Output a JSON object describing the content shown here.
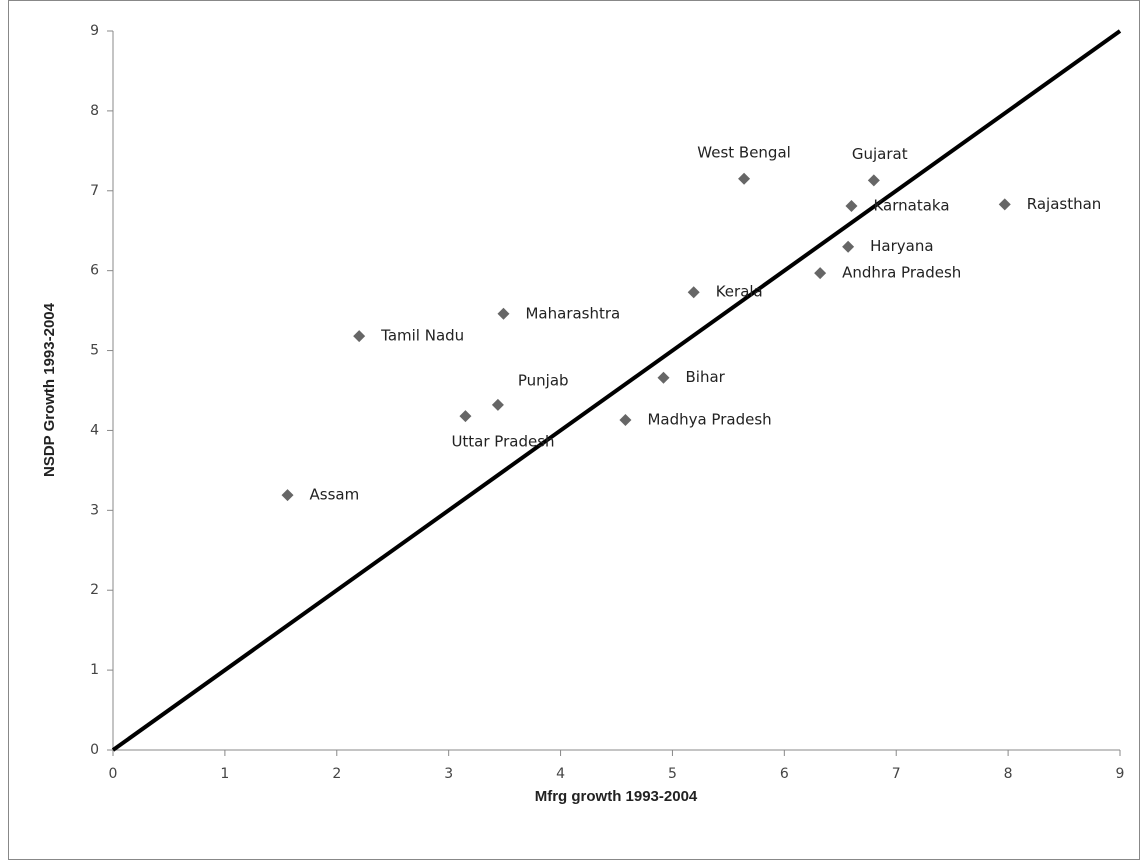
{
  "chart_data": {
    "type": "scatter",
    "x_label": "Mfrg growth 1993-2004",
    "y_label": "NSDP Growth 1993-2004",
    "color": "#666666",
    "points": [
      {
        "name": "Assam",
        "x": 1.56,
        "y": 3.19
      },
      {
        "name": "Tamil Nadu",
        "x": 2.2,
        "y": 5.18
      },
      {
        "name": "Uttar Pradesh",
        "x": 3.15,
        "y": 4.18
      },
      {
        "name": "Punjab",
        "x": 3.44,
        "y": 4.32
      },
      {
        "name": "Maharashtra",
        "x": 3.49,
        "y": 5.46
      },
      {
        "name": "Madhya Pradesh",
        "x": 4.58,
        "y": 4.13
      },
      {
        "name": "Bihar",
        "x": 4.92,
        "y": 4.66
      },
      {
        "name": "Kerala",
        "x": 5.19,
        "y": 5.73
      },
      {
        "name": "West Bengal",
        "x": 5.64,
        "y": 7.15
      },
      {
        "name": "Andhra Pradesh",
        "x": 6.32,
        "y": 5.97
      },
      {
        "name": "Haryana",
        "x": 6.57,
        "y": 6.3
      },
      {
        "name": "Karnataka",
        "x": 6.6,
        "y": 6.81
      },
      {
        "name": "Gujarat",
        "x": 6.8,
        "y": 7.13
      },
      {
        "name": "Rajasthan",
        "x": 7.97,
        "y": 6.83
      }
    ],
    "reference_line": {
      "x": [
        0,
        9
      ],
      "y": [
        0,
        9
      ],
      "color": "#000000"
    },
    "xlim": [
      0,
      9
    ],
    "xticks": [
      0,
      1,
      2,
      3,
      4,
      5,
      6,
      7,
      8,
      9
    ],
    "ylim": [
      0,
      9
    ],
    "yticks": [
      0,
      1,
      2,
      3,
      4,
      5,
      6,
      7,
      8,
      9
    ]
  }
}
